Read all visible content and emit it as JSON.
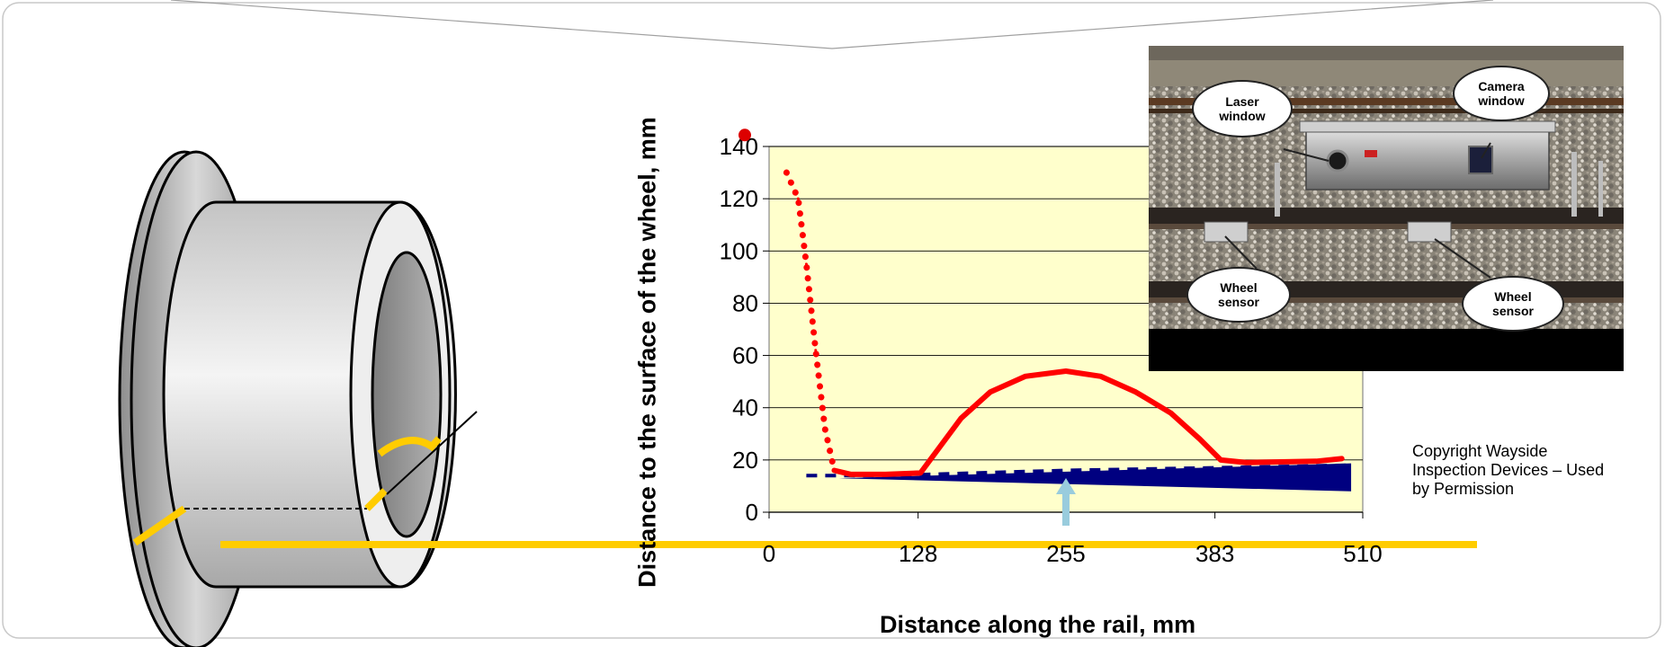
{
  "chart_data": {
    "type": "line",
    "xlabel": "Distance along the rail, mm",
    "ylabel": "Distance to the surface of the wheel, mm",
    "xlim": [
      0,
      510
    ],
    "ylim": [
      0,
      140
    ],
    "x_ticks": [
      "0",
      "128",
      "255",
      "383",
      "510"
    ],
    "y_ticks": [
      "0",
      "20",
      "40",
      "60",
      "80",
      "100",
      "120",
      "140"
    ],
    "grid": "horizontal",
    "plot_background": "#ffffcc",
    "series": [
      {
        "style": "dotted-then-solid",
        "color": "#ff0000",
        "points": [
          [
            15,
            130
          ],
          [
            25,
            120
          ],
          [
            32,
            95
          ],
          [
            40,
            62
          ],
          [
            48,
            32
          ],
          [
            56,
            16
          ],
          [
            70,
            14.5
          ],
          [
            100,
            14.5
          ],
          [
            130,
            15
          ],
          [
            145,
            24
          ],
          [
            165,
            36
          ],
          [
            190,
            46
          ],
          [
            220,
            52
          ],
          [
            255,
            54
          ],
          [
            285,
            52
          ],
          [
            315,
            46
          ],
          [
            345,
            38
          ],
          [
            370,
            28
          ],
          [
            388,
            20
          ],
          [
            410,
            19
          ],
          [
            470,
            19.5
          ],
          [
            492,
            20.5
          ]
        ]
      },
      {
        "style": "dashed",
        "color": "#000080",
        "points": [
          [
            32,
            14
          ],
          [
            100,
            14
          ],
          [
            255,
            16
          ],
          [
            383,
            17
          ],
          [
            500,
            18
          ]
        ]
      }
    ],
    "annotations": [
      {
        "type": "arrow-up",
        "x": 255,
        "color": "#99ccdd"
      },
      {
        "type": "marker-dot",
        "x": 0,
        "y": 143,
        "color": "#dd0000"
      }
    ]
  },
  "photo": {
    "callouts": [
      {
        "label": "Laser\nwindow"
      },
      {
        "label": "Camera\nwindow"
      },
      {
        "label": "Wheel\nsensor"
      },
      {
        "label": "Wheel\nsensor"
      }
    ]
  },
  "copyright": "Copyright Wayside Inspection Devices – Used by Permission",
  "colors": {
    "wheel_gray": "#a0a0a0",
    "measurement_line": "#ffcc00",
    "profile": "#ff0000",
    "rail_base": "#000080"
  }
}
